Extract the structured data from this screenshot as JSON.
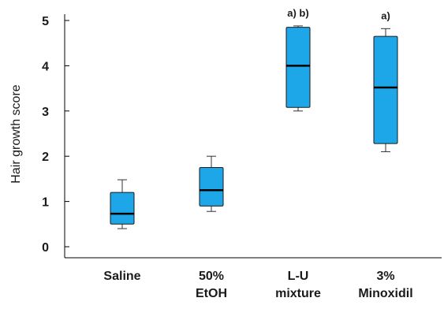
{
  "chart_data": {
    "type": "box",
    "ylabel": "Hair growth score",
    "ylim": [
      0,
      5
    ],
    "yticks": [
      "0",
      "1",
      "2",
      "3",
      "4",
      "5"
    ],
    "categories": [
      [
        "Saline"
      ],
      [
        "50%",
        "EtOH"
      ],
      [
        "L-U",
        "mixture"
      ],
      [
        "3%",
        "Minoxidil"
      ]
    ],
    "boxes": [
      {
        "min": 0.4,
        "q1": 0.5,
        "median": 0.73,
        "q3": 1.2,
        "max": 1.48,
        "annotation": ""
      },
      {
        "min": 0.78,
        "q1": 0.9,
        "median": 1.25,
        "q3": 1.75,
        "max": 2.0,
        "annotation": ""
      },
      {
        "min": 3.0,
        "q1": 3.08,
        "median": 4.0,
        "q3": 4.85,
        "max": 4.88,
        "annotation": "a) b)"
      },
      {
        "min": 2.1,
        "q1": 2.28,
        "median": 3.52,
        "q3": 4.65,
        "max": 4.82,
        "annotation": "a)"
      }
    ],
    "box_color": "#1ea7e8",
    "grid": false
  }
}
